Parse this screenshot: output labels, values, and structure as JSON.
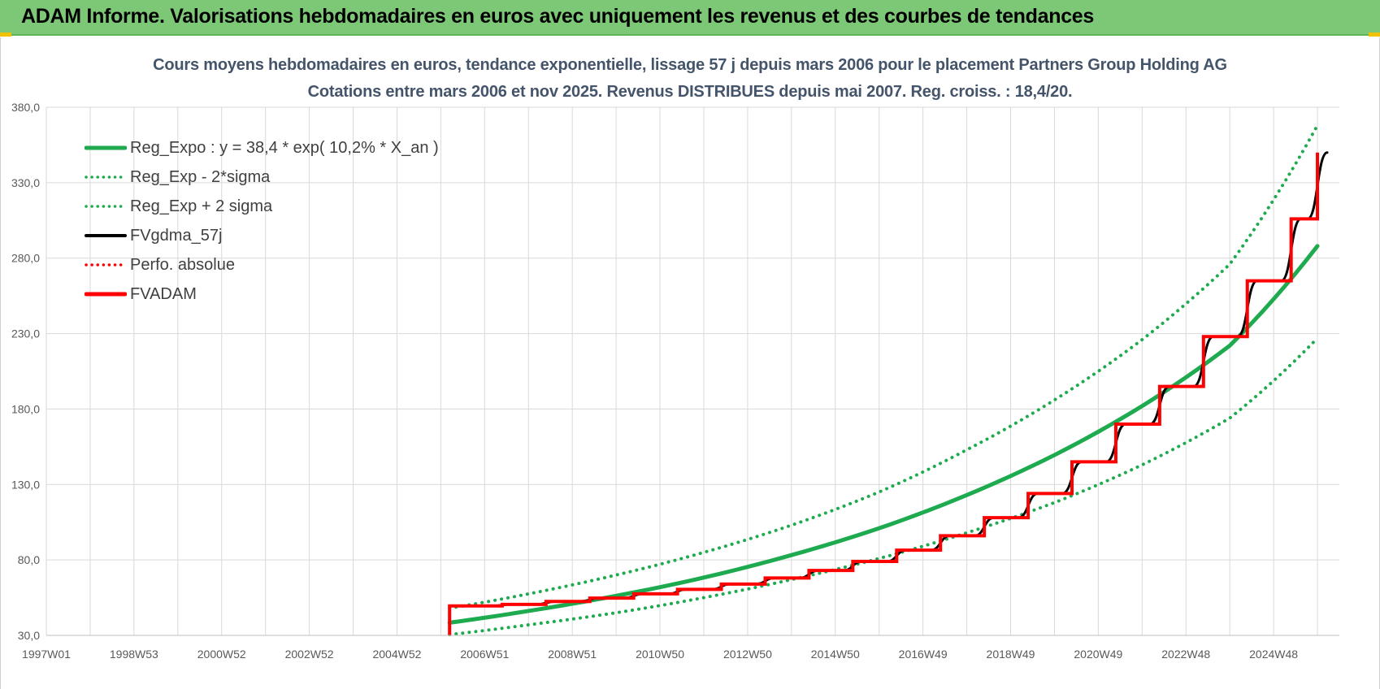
{
  "header": {
    "title": "ADAM Informe. Valorisations hebdomadaires en euros avec uniquement les revenus et des courbes de tendances"
  },
  "chart_data": {
    "type": "line",
    "title": "Cours moyens hebdomadaires en euros, tendance exponentielle, lissage 57 j depuis mars 2006 pour le placement Partners Group Holding AG",
    "subtitle": "Cotations entre mars 2006 et nov 2025. Revenus DISTRIBUES depuis mai 2007. Reg. croiss. : 18,4/20.",
    "xlabel": "",
    "ylabel": "",
    "ylim": [
      30,
      380
    ],
    "xlim": [
      1997.0,
      2026.5
    ],
    "y_ticks": [
      "30,0",
      "80,0",
      "130,0",
      "180,0",
      "230,0",
      "280,0",
      "330,0",
      "380,0"
    ],
    "y_tick_values": [
      30,
      80,
      130,
      180,
      230,
      280,
      330,
      380
    ],
    "x_ticks": [
      "1997W01",
      "1998W53",
      "2000W52",
      "2002W52",
      "2004W52",
      "2006W51",
      "2008W51",
      "2010W50",
      "2012W50",
      "2014W50",
      "2016W49",
      "2018W49",
      "2020W49",
      "2022W48",
      "2024W48"
    ],
    "x_tick_values": [
      1997.0,
      1999.0,
      2001.0,
      2003.0,
      2005.0,
      2007.0,
      2009.0,
      2011.0,
      2013.0,
      2015.0,
      2017.0,
      2019.0,
      2021.0,
      2023.0,
      2025.0
    ],
    "grid": true,
    "legend_position": "top-left",
    "colors": {
      "reg_expo": "#00b050",
      "fvgdma": "#000000",
      "perfo": "#ff0000",
      "fvadam": "#ff0000"
    },
    "series": [
      {
        "name": "Reg_Expo : y = 38,4 * exp( 10,2% *  X_an )",
        "style": "solid-thick",
        "color": "#1eaa4e",
        "x": [
          2006.2,
          2008.0,
          2010.0,
          2012.0,
          2014.0,
          2016.0,
          2018.0,
          2020.0,
          2022.0,
          2024.0,
          2026.0
        ],
        "values": [
          38.4,
          46.2,
          56.2,
          68.3,
          83.2,
          101.0,
          123.0,
          149.5,
          182.0,
          222.0,
          288.0
        ]
      },
      {
        "name": "Reg_Exp - 2*sigma",
        "style": "dotted",
        "color": "#1eaa4e",
        "x": [
          2006.2,
          2008.0,
          2010.0,
          2012.0,
          2014.0,
          2016.0,
          2018.0,
          2020.0,
          2022.0,
          2024.0,
          2026.0
        ],
        "values": [
          30.5,
          37.0,
          45.0,
          55.0,
          67.0,
          81.0,
          98.0,
          118.0,
          143.0,
          174.0,
          227.0
        ]
      },
      {
        "name": "Reg_Exp + 2 sigma",
        "style": "dotted",
        "color": "#1eaa4e",
        "x": [
          2006.2,
          2008.0,
          2010.0,
          2012.0,
          2014.0,
          2016.0,
          2018.0,
          2020.0,
          2022.0,
          2024.0,
          2026.0
        ],
        "values": [
          48.0,
          57.5,
          70.0,
          85.0,
          103.0,
          125.0,
          153.0,
          186.0,
          226.0,
          276.0,
          368.0
        ]
      },
      {
        "name": "FVgdma_57j",
        "style": "solid",
        "color": "#000000",
        "x": [
          2006.2,
          2007.4,
          2008.4,
          2009.4,
          2010.4,
          2011.4,
          2012.4,
          2013.4,
          2014.4,
          2015.4,
          2016.4,
          2017.4,
          2018.4,
          2019.4,
          2020.4,
          2021.4,
          2022.4,
          2023.4,
          2024.4,
          2025.4,
          2026.0
        ],
        "values": [
          49.5,
          50.5,
          52.5,
          54.7,
          57.5,
          60.5,
          64.0,
          68.0,
          73.0,
          79.0,
          86.5,
          96.0,
          108.0,
          124.0,
          145.0,
          170.0,
          195.0,
          228.0,
          265.0,
          306.0,
          350.0
        ]
      },
      {
        "name": "Perfo. absolue",
        "style": "dotted",
        "color": "#ff0000",
        "x": [],
        "values": []
      },
      {
        "name": "FVADAM",
        "style": "step-thick",
        "color": "#ff0000",
        "x": [
          2006.2,
          2007.4,
          2008.4,
          2009.4,
          2010.4,
          2011.4,
          2012.4,
          2013.4,
          2014.4,
          2015.4,
          2016.4,
          2017.4,
          2018.4,
          2019.4,
          2020.4,
          2021.4,
          2022.4,
          2023.4,
          2024.4,
          2025.4,
          2026.0
        ],
        "values": [
          49.5,
          50.5,
          52.5,
          54.7,
          57.5,
          60.5,
          64.0,
          68.0,
          73.0,
          79.0,
          86.5,
          96.0,
          108.0,
          124.0,
          145.0,
          170.0,
          195.0,
          228.0,
          265.0,
          306.0,
          350.0
        ]
      }
    ]
  }
}
